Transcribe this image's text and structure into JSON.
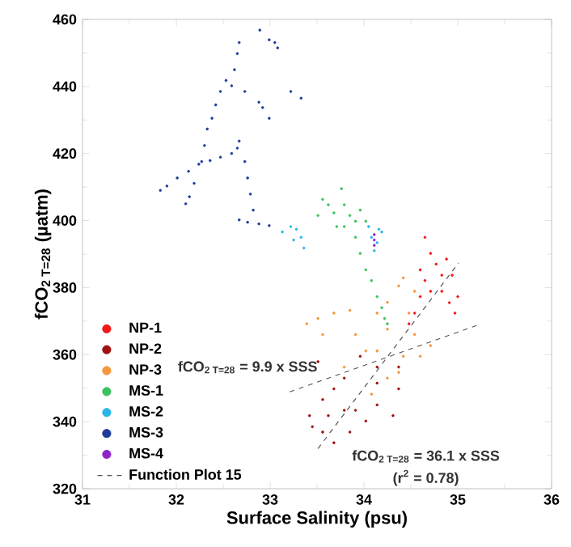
{
  "chart_data": {
    "type": "scatter",
    "xlabel": "Surface Salinity (psu)",
    "ylabel": "fCO$_{2 T=28}$ (µatm)",
    "xlim": [
      31,
      36
    ],
    "ylim": [
      320,
      460
    ],
    "xticks": [
      31,
      32,
      33,
      34,
      35,
      36
    ],
    "yticks": [
      320,
      340,
      360,
      380,
      400,
      420,
      440,
      460
    ],
    "marker": "circle",
    "legend": "bottom left",
    "annotations": [
      "fCO$_{2 T=28}$ = 9.9 x SSS",
      "fCO$_{2 T=28}$ = 36.1 x SSS",
      "(r$^{2}$ = 0.78)"
    ],
    "series": [
      {
        "name": "NP-1",
        "color": "#f01818",
        "x": [
          34.65,
          34.71,
          34.6,
          34.65,
          34.77,
          34.88,
          34.94,
          35.0,
          34.97,
          34.83,
          34.6,
          34.71,
          34.54,
          34.48,
          34.83,
          34.91
        ],
        "values": [
          395.0,
          390.2,
          385.3,
          382.1,
          387.0,
          388.5,
          383.7,
          377.3,
          372.4,
          378.9,
          377.3,
          378.9,
          372.4,
          369.2,
          383.7,
          375.5
        ]
      },
      {
        "name": "NP-2",
        "color": "#a01010",
        "x": [
          33.51,
          33.42,
          33.45,
          33.56,
          33.68,
          33.85,
          33.91,
          34.02,
          34.14,
          34.31,
          34.37,
          34.37,
          34.14,
          33.96,
          33.79,
          33.68,
          33.56,
          33.79,
          33.62,
          34.14
        ],
        "values": [
          357.9,
          341.8,
          338.5,
          336.9,
          333.7,
          336.9,
          343.4,
          340.2,
          345.0,
          341.8,
          349.8,
          356.3,
          356.3,
          359.5,
          353.0,
          349.8,
          346.6,
          343.4,
          341.8,
          351.5
        ]
      },
      {
        "name": "NP-3",
        "color": "#f5963c",
        "x": [
          33.51,
          33.68,
          33.85,
          34.14,
          34.25,
          34.37,
          34.42,
          34.54,
          34.48,
          34.54,
          34.42,
          34.37,
          34.25,
          34.08,
          34.14,
          34.02,
          33.79,
          33.91,
          34.25,
          33.56,
          33.39,
          34.6,
          34.71
        ],
        "values": [
          370.8,
          372.4,
          373.2,
          372.4,
          375.6,
          380.5,
          382.9,
          378.9,
          372.4,
          366.0,
          359.5,
          354.7,
          353.0,
          348.2,
          361.1,
          361.1,
          356.3,
          366.0,
          367.6,
          366.0,
          369.2,
          359.5,
          362.7
        ]
      },
      {
        "name": "MS-1",
        "color": "#3cc060",
        "x": [
          33.56,
          33.62,
          33.68,
          33.76,
          33.79,
          33.85,
          33.91,
          33.96,
          34.02,
          33.79,
          33.71,
          33.91,
          33.96,
          34.02,
          34.08,
          34.14,
          34.19,
          34.22,
          34.25,
          33.51
        ],
        "values": [
          406.3,
          404.7,
          402.3,
          409.5,
          404.7,
          401.5,
          399.8,
          403.1,
          399.8,
          398.2,
          398.2,
          395.0,
          390.2,
          385.3,
          382.1,
          377.3,
          374.0,
          370.8,
          369.2,
          401.5
        ]
      },
      {
        "name": "MS-2",
        "color": "#29b6e8",
        "x": [
          33.13,
          33.22,
          33.28,
          33.33,
          33.36,
          33.25,
          34.08,
          34.14,
          34.19,
          34.11,
          34.16,
          34.05
        ],
        "values": [
          396.6,
          398.2,
          397.4,
          395.0,
          391.8,
          394.2,
          395.0,
          393.4,
          396.6,
          391.0,
          397.4,
          398.2
        ]
      },
      {
        "name": "MS-3",
        "color": "#1f3c99",
        "x": [
          31.83,
          31.9,
          32.01,
          32.13,
          32.24,
          32.36,
          32.47,
          32.59,
          32.65,
          32.67,
          32.73,
          32.76,
          32.79,
          32.82,
          32.88,
          32.99,
          32.67,
          32.76,
          32.1,
          32.14,
          32.19,
          32.27,
          32.3,
          32.33,
          32.38,
          32.42,
          32.47,
          32.53,
          32.62,
          32.65,
          32.73,
          32.88,
          32.92,
          32.99,
          33.05,
          32.99,
          32.89,
          33.08,
          33.22,
          33.33,
          32.59,
          32.67
        ],
        "values": [
          409.0,
          410.3,
          412.7,
          414.7,
          416.8,
          417.9,
          418.9,
          420.0,
          421.6,
          423.7,
          417.6,
          412.7,
          407.9,
          403.1,
          399.0,
          398.5,
          400.2,
          399.5,
          405.0,
          407.1,
          411.1,
          417.6,
          422.4,
          427.3,
          430.5,
          434.5,
          438.5,
          441.8,
          445.0,
          449.8,
          438.5,
          435.3,
          433.7,
          430.5,
          453.1,
          453.9,
          456.8,
          451.5,
          438.5,
          436.5,
          440.2,
          453.1
        ]
      },
      {
        "name": "MS-4",
        "color": "#8e24c8",
        "x": [
          34.11,
          34.11,
          34.11
        ],
        "values": [
          394.2,
          392.6,
          395.8
        ]
      },
      {
        "name": "Function Plot 15",
        "type": "line",
        "color": "#555555",
        "line_style": "dashed",
        "marker": "none",
        "x": [
          33.51,
          35.01
        ],
        "values": [
          332,
          387.4
        ]
      },
      {
        "type": "line",
        "color": "#555555",
        "line_style": "dashed",
        "marker": "none",
        "x": [
          33.21,
          35.2
        ],
        "values": [
          348.9,
          368.7
        ]
      }
    ]
  }
}
